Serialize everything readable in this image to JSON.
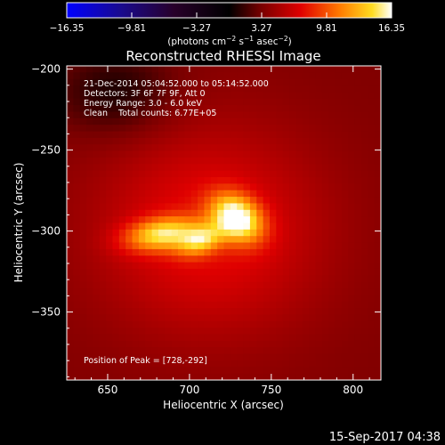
{
  "chart_data": {
    "type": "heatmap",
    "title": "Reconstructed RHESSI Image",
    "xlabel": "Heliocentric X (arcsec)",
    "ylabel": "Heliocentric Y (arcsec)",
    "xlim": [
      625,
      817
    ],
    "ylim": [
      -392,
      -198
    ],
    "xticks": [
      "650",
      "700",
      "750",
      "800"
    ],
    "xtick_values": [
      650,
      700,
      750,
      800
    ],
    "yticks": [
      "−200",
      "−250",
      "−300",
      "−350"
    ],
    "ytick_values": [
      -200,
      -250,
      -300,
      -350
    ],
    "colorbar": {
      "ticks": [
        "−16.35",
        "−9.81",
        "−3.27",
        "3.27",
        "9.81",
        "16.35"
      ],
      "tick_values": [
        -16.35,
        -9.81,
        -3.27,
        3.27,
        9.81,
        16.35
      ],
      "range": [
        -16.35,
        16.35
      ],
      "units_base": "(photons cm",
      "units_exp1": "−2",
      "units_mid": " s",
      "units_exp2": "−1",
      "units_tail": " asec",
      "units_exp3": "−2",
      "units_close": ")"
    },
    "sources": [
      {
        "x": 729,
        "y": -292,
        "sigma_x": 12,
        "sigma_y": 9,
        "angle": -38,
        "peak": 16.35
      },
      {
        "x": 683,
        "y": -302,
        "sigma_x": 16,
        "sigma_y": 7,
        "angle": 8,
        "peak": 13.4
      },
      {
        "x": 707,
        "y": -306,
        "sigma_x": 10,
        "sigma_y": 6,
        "angle": 20,
        "peak": 11.0
      }
    ],
    "background_level": 3.5,
    "annotations": {
      "time_range": "21-Dec-2014 05:04:52.000 to 05:14:52.000",
      "detectors": "Detectors: 3F 6F 7F 9F, Att 0",
      "energy": "Energy Range: 3.0 - 6.0 keV",
      "clean": "Clean    Total counts: 6.77E+05",
      "peak_position": "Position of Peak = [728,-292]"
    },
    "footer_date": "15-Sep-2017 04:38"
  }
}
